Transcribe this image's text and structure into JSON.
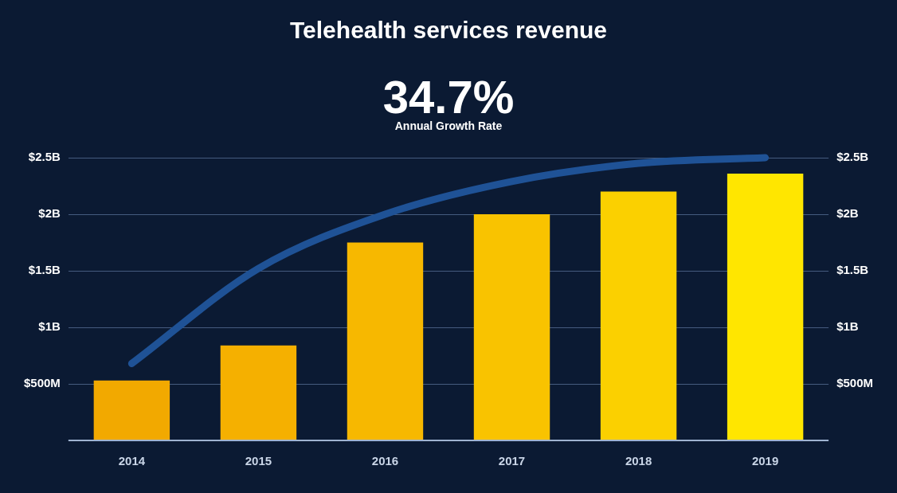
{
  "chart_data": {
    "type": "bar",
    "title": "Telehealth services revenue",
    "categories": [
      "2014",
      "2015",
      "2016",
      "2017",
      "2018",
      "2019"
    ],
    "series": [
      {
        "values": [
          530000000,
          840000000,
          1750000000,
          2000000000,
          2200000000,
          2360000000
        ],
        "colors": [
          "#f2a900",
          "#f5b000",
          "#f7b800",
          "#f9c300",
          "#fbd000",
          "#ffe600"
        ]
      },
      {
        "type": "line",
        "color": "#1f5296",
        "values": [
          680000000,
          1520000000,
          2000000000,
          2290000000,
          2450000000,
          2500000000
        ]
      }
    ],
    "ylim": [
      0,
      2500000000
    ],
    "yticks": [
      {
        "value": 500000000,
        "label": "$500M"
      },
      {
        "value": 1000000000,
        "label": "$1B"
      },
      {
        "value": 1500000000,
        "label": "$1.5B"
      },
      {
        "value": 2000000000,
        "label": "$2B"
      },
      {
        "value": 2500000000,
        "label": "$2.5B"
      }
    ],
    "y2lim": [
      0,
      2500000000
    ],
    "y2ticks": [
      {
        "value": 500000000,
        "label": "$500M"
      },
      {
        "value": 1000000000,
        "label": "$1B"
      },
      {
        "value": 1500000000,
        "label": "$1.5B"
      },
      {
        "value": 2000000000,
        "label": "$2B"
      },
      {
        "value": 2500000000,
        "label": "$2.5B"
      }
    ],
    "annotations": [
      "34.7%",
      "Annual Growth Rate"
    ],
    "grid": "y",
    "legend": false,
    "marker": "none"
  }
}
